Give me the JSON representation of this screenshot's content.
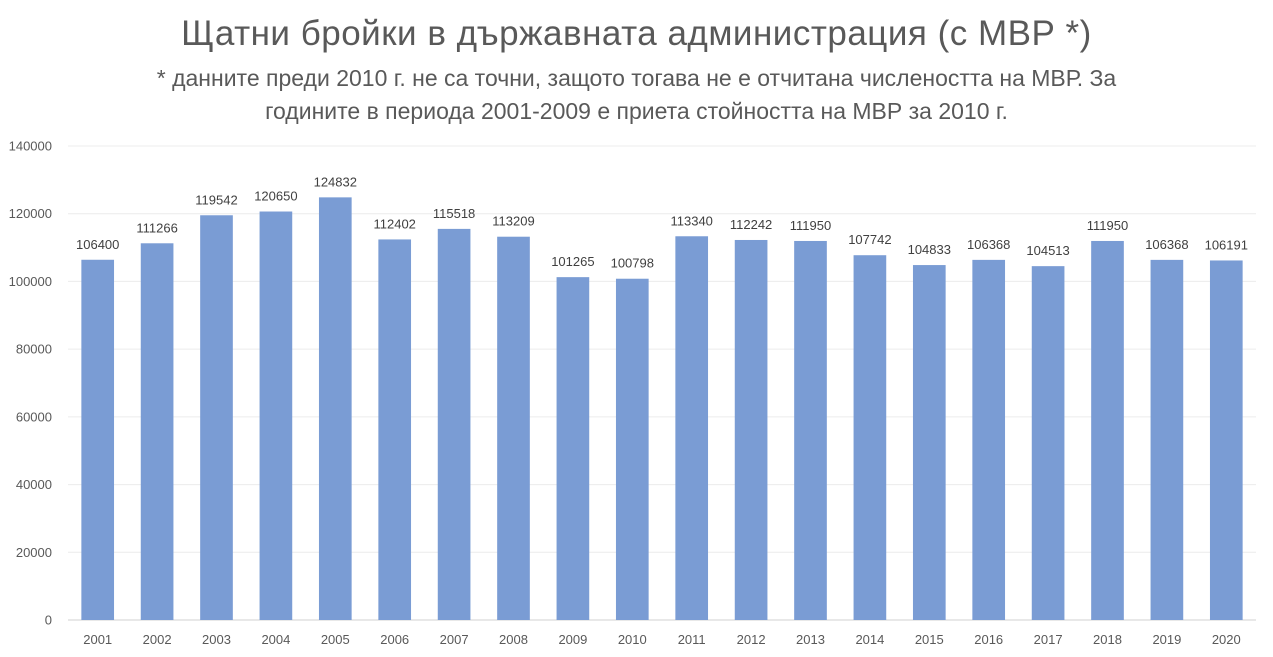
{
  "chart_data": {
    "type": "bar",
    "title": "Щатни бройки в държавната администрация (с МВР *)",
    "subtitle": "* данните преди 2010 г. не са точни, защото тогава не е отчитана числеността на МВР. За годините в периода 2001-2009 е приета стойността на МВР за 2010 г.",
    "categories": [
      "2001",
      "2002",
      "2003",
      "2004",
      "2005",
      "2006",
      "2007",
      "2008",
      "2009",
      "2010",
      "2011",
      "2012",
      "2013",
      "2014",
      "2015",
      "2016",
      "2017",
      "2018",
      "2019",
      "2020"
    ],
    "values": [
      106400,
      111266,
      119542,
      120650,
      124832,
      112402,
      115518,
      113209,
      101265,
      100798,
      113340,
      112242,
      111950,
      107742,
      104833,
      106368,
      104513,
      111950,
      106368,
      106191
    ],
    "ylim": [
      0,
      140000
    ],
    "yticks": [
      0,
      20000,
      40000,
      60000,
      80000,
      100000,
      120000,
      140000
    ],
    "grid": true,
    "legend": "none",
    "bar_color": "#7a9cd4"
  }
}
